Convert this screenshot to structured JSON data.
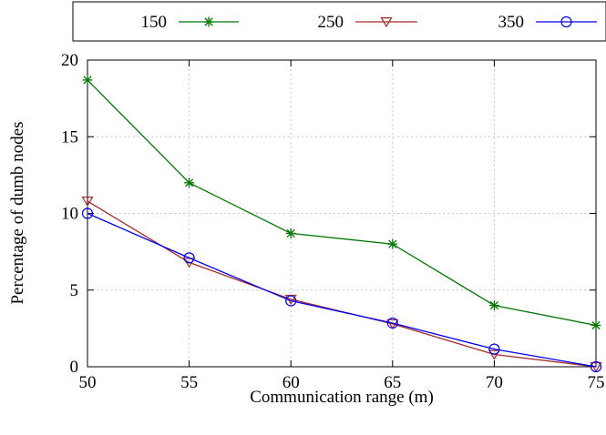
{
  "chart_data": {
    "type": "line",
    "title": "",
    "xlabel": "Communication range (m)",
    "ylabel": "Percentage of dumb nodes",
    "x": [
      50,
      55,
      60,
      65,
      70,
      75
    ],
    "xlim": [
      50,
      75
    ],
    "ylim": [
      0,
      20
    ],
    "xticks": [
      "50",
      "55",
      "60",
      "65",
      "70",
      "75"
    ],
    "yticks": [
      "0",
      "5",
      "10",
      "15",
      "20"
    ],
    "grid": true,
    "legend_position": "top, outside plot area",
    "series": [
      {
        "name": "150",
        "color": "#007700",
        "marker": "star",
        "values": [
          18.7,
          12.0,
          8.7,
          8.0,
          4.0,
          2.7
        ]
      },
      {
        "name": "250",
        "color": "#a52a2a",
        "marker": "triangle-down",
        "values": [
          10.8,
          6.8,
          4.4,
          2.8,
          0.8,
          0.0
        ]
      },
      {
        "name": "350",
        "color": "#0000ee",
        "marker": "circle",
        "values": [
          10.0,
          7.1,
          4.3,
          2.85,
          1.15,
          0.0
        ]
      }
    ]
  }
}
